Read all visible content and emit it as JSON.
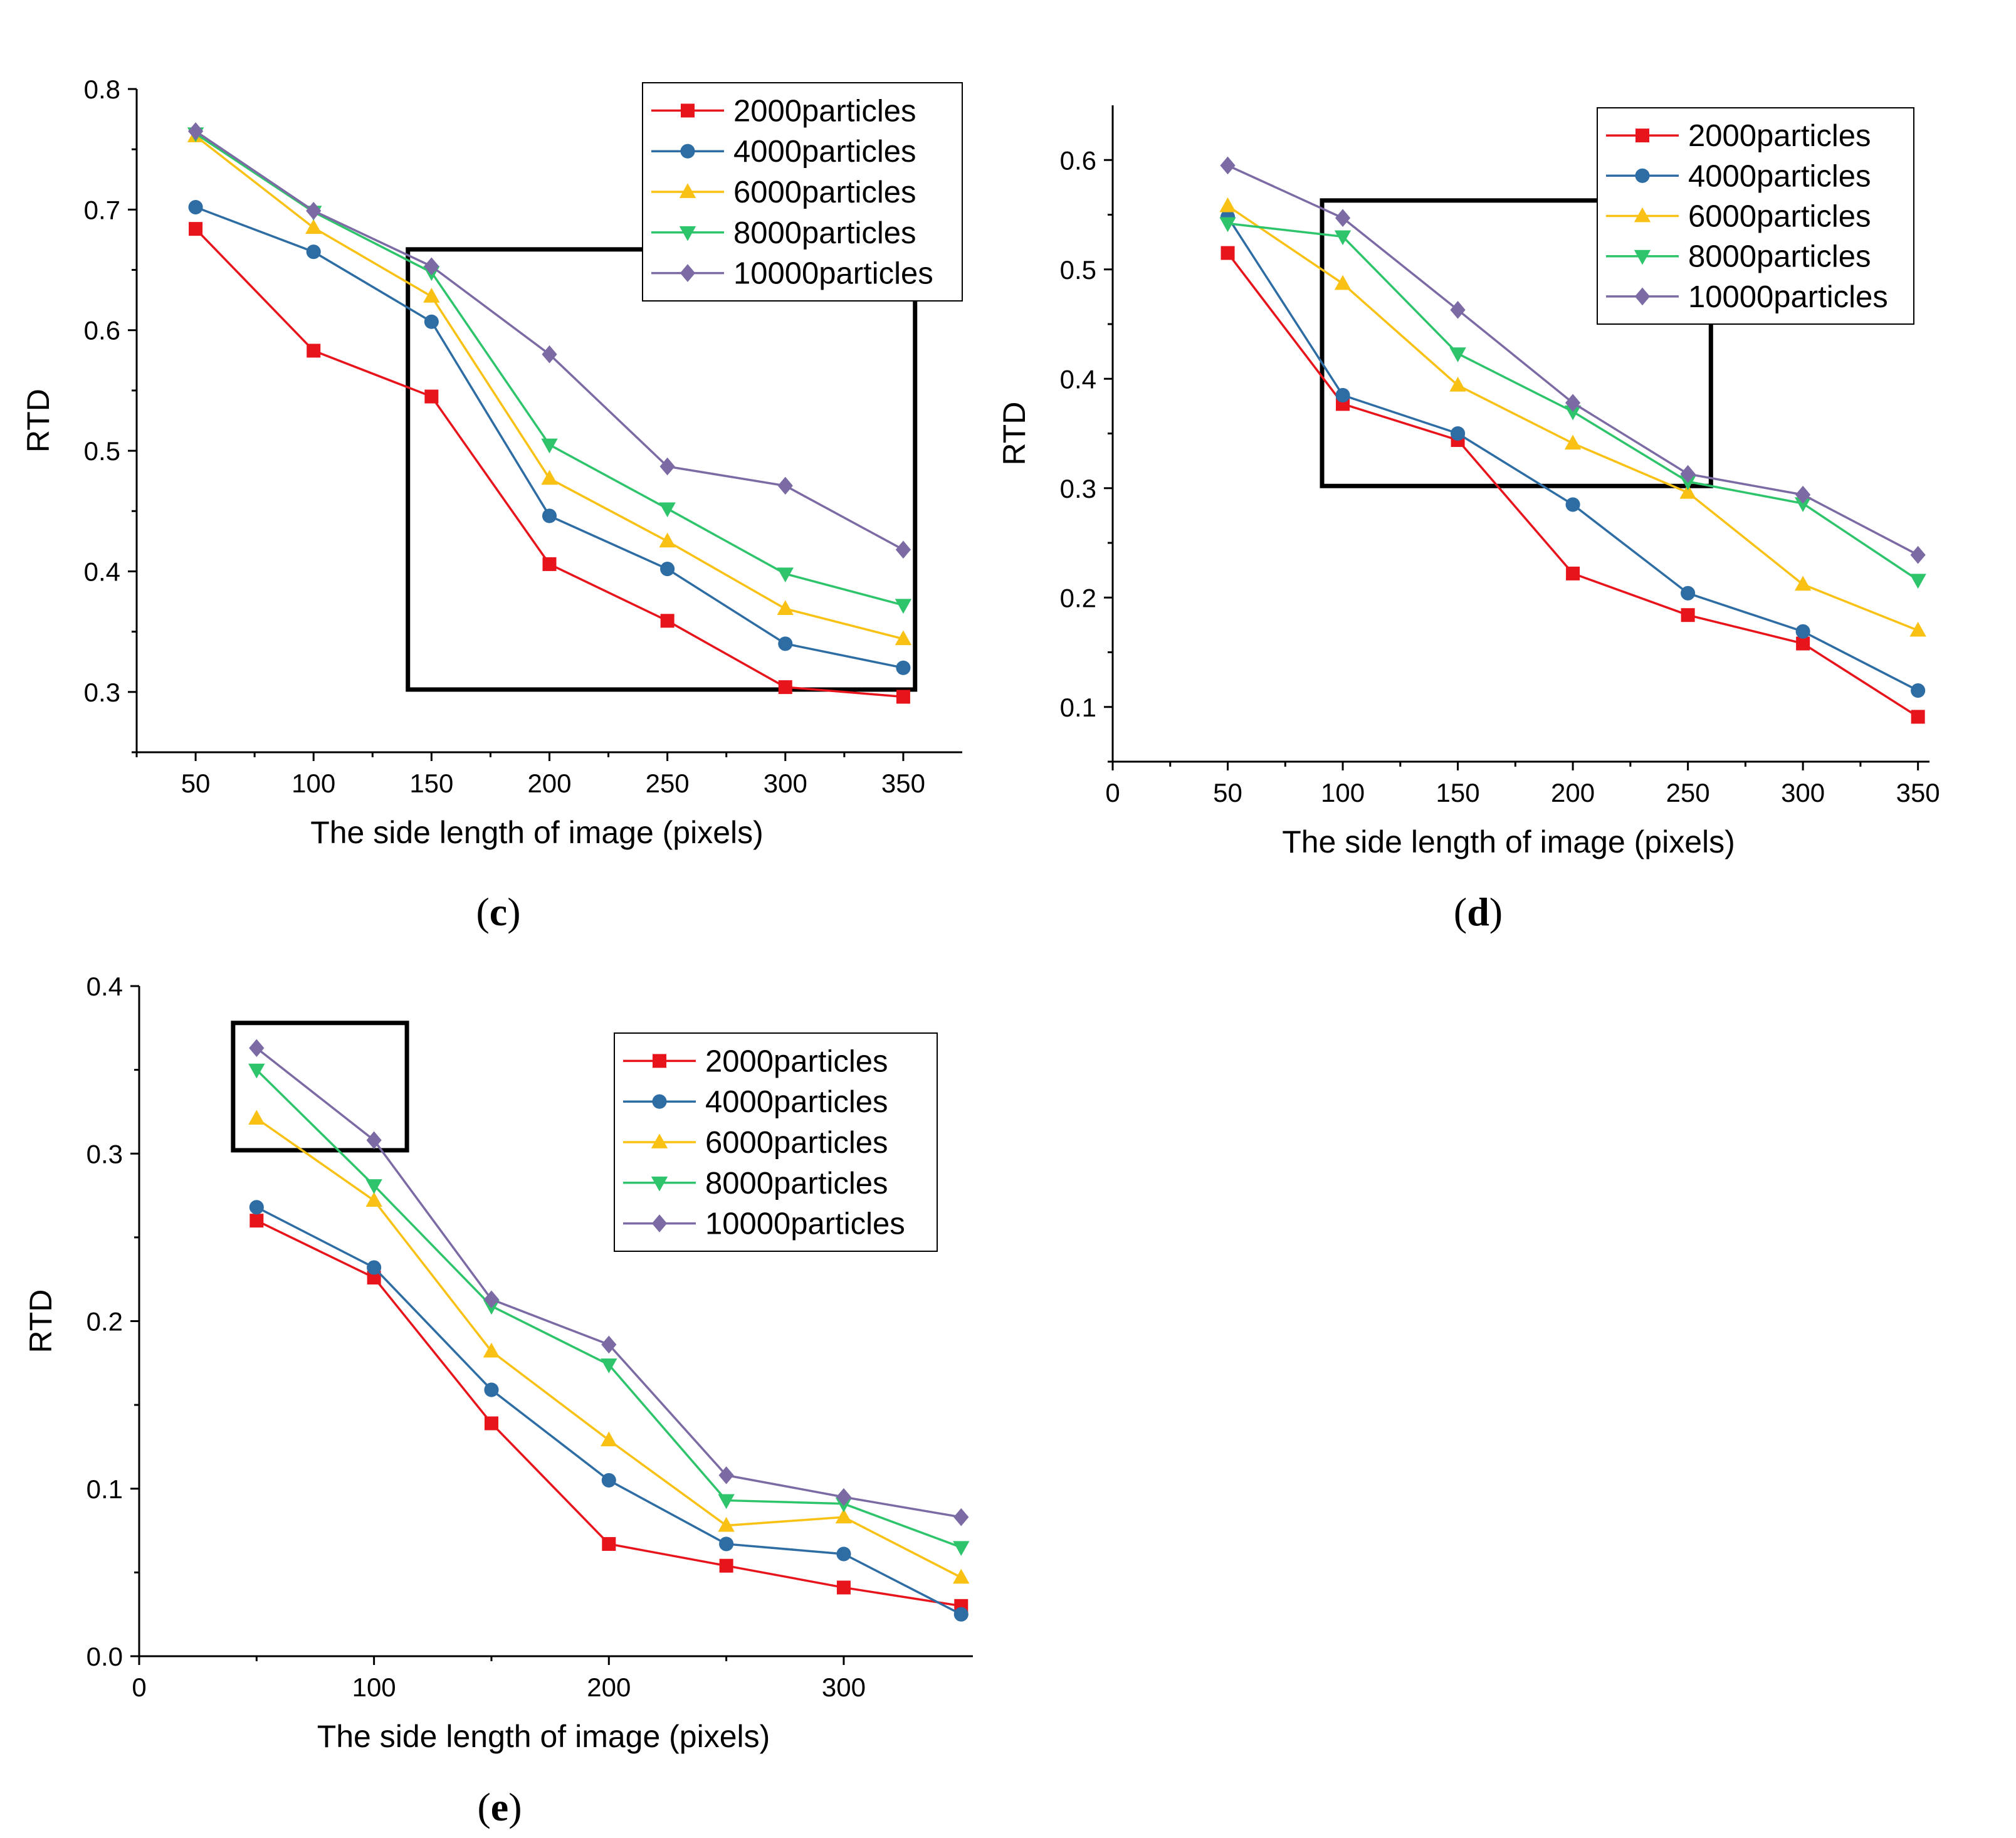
{
  "panels": [
    {
      "label": "c",
      "chart_data": {
        "type": "line",
        "xlabel": "The side length of image (pixels)",
        "ylabel": "RTD",
        "xlim": [
          25,
          375
        ],
        "ylim": [
          0.25,
          0.8
        ],
        "xticks": [
          50,
          100,
          150,
          200,
          250,
          300,
          350
        ],
        "xtick_labels": [
          "50",
          "100",
          "150",
          "200",
          "250",
          "300",
          "350"
        ],
        "yticks": [
          0.3,
          0.4,
          0.5,
          0.6,
          0.7,
          0.8
        ],
        "ytick_labels": [
          "0.3",
          "0.4",
          "0.5",
          "0.6",
          "0.7",
          "0.8"
        ],
        "x": [
          50,
          100,
          150,
          200,
          250,
          300,
          350
        ],
        "series": [
          {
            "name": "2000particles",
            "values": [
              0.684,
              0.583,
              0.545,
              0.406,
              0.359,
              0.304,
              0.296
            ]
          },
          {
            "name": "4000particles",
            "values": [
              0.702,
              0.665,
              0.607,
              0.446,
              0.402,
              0.34,
              0.32
            ]
          },
          {
            "name": "6000particles",
            "values": [
              0.761,
              0.685,
              0.628,
              0.477,
              0.425,
              0.369,
              0.344
            ]
          },
          {
            "name": "8000particles",
            "values": [
              0.763,
              0.698,
              0.648,
              0.505,
              0.452,
              0.398,
              0.372
            ]
          },
          {
            "name": "10000particles",
            "values": [
              0.765,
              0.699,
              0.653,
              0.58,
              0.487,
              0.471,
              0.418
            ]
          }
        ],
        "highlight_box": {
          "x": [
            140,
            355
          ],
          "y": [
            0.302,
            0.667
          ]
        },
        "legend_position": "top-right",
        "grid": false
      }
    },
    {
      "label": "d",
      "chart_data": {
        "type": "line",
        "xlabel": "The side length of image (pixels)",
        "ylabel": "RTD",
        "xlim": [
          0,
          355
        ],
        "ylim": [
          0.05,
          0.65
        ],
        "xticks": [
          0,
          50,
          100,
          150,
          200,
          250,
          300,
          350
        ],
        "xtick_labels": [
          "0",
          "50",
          "100",
          "150",
          "200",
          "250",
          "300",
          "350"
        ],
        "yticks": [
          0.1,
          0.2,
          0.3,
          0.4,
          0.5,
          0.6
        ],
        "ytick_labels": [
          "0.1",
          "0.2",
          "0.3",
          "0.4",
          "0.5",
          "0.6"
        ],
        "x": [
          50,
          100,
          150,
          200,
          250,
          300,
          350
        ],
        "series": [
          {
            "name": "2000particles",
            "values": [
              0.515,
              0.377,
              0.344,
              0.222,
              0.184,
              0.158,
              0.091
            ]
          },
          {
            "name": "4000particles",
            "values": [
              0.548,
              0.385,
              0.35,
              0.285,
              0.204,
              0.169,
              0.115
            ]
          },
          {
            "name": "6000particles",
            "values": [
              0.558,
              0.487,
              0.394,
              0.341,
              0.296,
              0.212,
              0.17
            ]
          },
          {
            "name": "8000particles",
            "values": [
              0.542,
              0.53,
              0.423,
              0.37,
              0.306,
              0.286,
              0.216
            ]
          },
          {
            "name": "10000particles",
            "values": [
              0.595,
              0.547,
              0.463,
              0.378,
              0.313,
              0.294,
              0.239
            ]
          }
        ],
        "highlight_box": {
          "x": [
            91,
            260
          ],
          "y": [
            0.302,
            0.563
          ]
        },
        "legend_position": "top-right",
        "grid": false
      }
    },
    {
      "label": "e",
      "chart_data": {
        "type": "line",
        "xlabel": "The side length of image (pixels)",
        "ylabel": "RTD",
        "xlim": [
          0,
          355
        ],
        "ylim": [
          0.0,
          0.4
        ],
        "xticks": [
          0,
          100,
          200,
          300
        ],
        "xtick_labels": [
          "0",
          "100",
          "200",
          "300"
        ],
        "yticks": [
          0.0,
          0.1,
          0.2,
          0.3,
          0.4
        ],
        "ytick_labels": [
          "0.0",
          "0.1",
          "0.2",
          "0.3",
          "0.4"
        ],
        "x": [
          50,
          100,
          150,
          200,
          250,
          300,
          350
        ],
        "series": [
          {
            "name": "2000particles",
            "values": [
              0.26,
              0.226,
              0.139,
              0.067,
              0.054,
              0.041,
              0.03
            ]
          },
          {
            "name": "4000particles",
            "values": [
              0.268,
              0.232,
              0.159,
              0.105,
              0.067,
              0.061,
              0.025
            ]
          },
          {
            "name": "6000particles",
            "values": [
              0.321,
              0.272,
              0.182,
              0.129,
              0.078,
              0.083,
              0.047
            ]
          },
          {
            "name": "8000particles",
            "values": [
              0.35,
              0.281,
              0.209,
              0.174,
              0.093,
              0.091,
              0.065
            ]
          },
          {
            "name": "10000particles",
            "values": [
              0.363,
              0.308,
              0.213,
              0.186,
              0.108,
              0.095,
              0.083
            ]
          }
        ],
        "highlight_box": {
          "x": [
            40,
            114
          ],
          "y": [
            0.302,
            0.378
          ]
        },
        "legend_position": "top-right",
        "grid": false
      }
    }
  ],
  "series_style": [
    {
      "color": "#e8141b",
      "marker": "square"
    },
    {
      "color": "#2e6da4",
      "marker": "circle"
    },
    {
      "color": "#f8c114",
      "marker": "triangle-up"
    },
    {
      "color": "#2ec46b",
      "marker": "triangle-down"
    },
    {
      "color": "#7b6aa3",
      "marker": "diamond"
    }
  ]
}
